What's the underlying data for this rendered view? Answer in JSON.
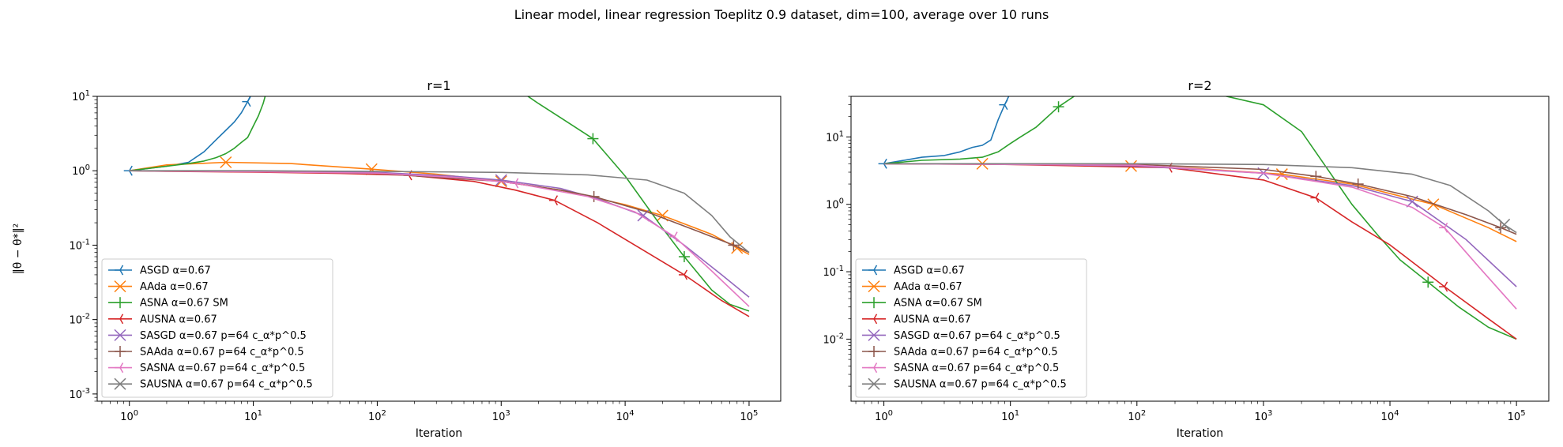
{
  "figure": {
    "suptitle": "Linear model, linear regression Toeplitz 0.9 dataset, dim=100, average over 10 runs"
  },
  "colors": {
    "ASGD": "#1f77b4",
    "AAda": "#ff7f0e",
    "ASNA": "#2ca02c",
    "AUSNA": "#d62728",
    "SASGD": "#9467bd",
    "SAAda": "#8c564b",
    "SASNA": "#e377c2",
    "SAUSNA": "#7f7f7f"
  },
  "chart_data": [
    {
      "type": "line",
      "title": "r=1",
      "xlabel": "Iteration",
      "ylabel": "‖θ − θ*‖²",
      "xscale": "log",
      "yscale": "log",
      "xlim": [
        0.55,
        180000
      ],
      "ylim": [
        0.0008,
        10
      ],
      "xticks": [
        "10^0",
        "10^1",
        "10^2",
        "10^3",
        "10^4",
        "10^5"
      ],
      "yticks": [
        "10^-3",
        "10^-2",
        "10^-1",
        "10^0",
        "10^1"
      ],
      "grid": false,
      "legend_position": "lower-left",
      "series": [
        {
          "name": "ASGD α=0.67",
          "key": "ASGD",
          "marker": "tri_left",
          "markers_at": [
            1,
            9
          ],
          "x": [
            1,
            2,
            3,
            4,
            5,
            6,
            7,
            8,
            9,
            10,
            11
          ],
          "y": [
            1.0,
            1.15,
            1.3,
            1.8,
            2.6,
            3.5,
            4.5,
            6.0,
            8.5,
            12,
            16
          ]
        },
        {
          "name": "AAda α=0.67",
          "key": "AAda",
          "marker": "x",
          "markers_at": [
            6,
            90,
            1000,
            20000,
            80000
          ],
          "x": [
            1,
            2,
            6,
            20,
            90,
            300,
            1000,
            3000,
            10000,
            20000,
            50000,
            100000
          ],
          "y": [
            1.0,
            1.2,
            1.3,
            1.25,
            1.05,
            0.9,
            0.72,
            0.55,
            0.35,
            0.25,
            0.14,
            0.075
          ]
        },
        {
          "name": "ASNA α=0.67 SM",
          "key": "ASNA",
          "marker": "plus",
          "markers_at": [
            5500,
            30000
          ],
          "x": [
            1,
            2,
            3,
            4,
            5,
            6,
            7,
            8,
            9,
            10,
            11,
            12,
            14,
            1400,
            2000,
            3000,
            5500,
            10000,
            20000,
            30000,
            50000,
            70000,
            100000
          ],
          "y": [
            1.0,
            1.15,
            1.25,
            1.35,
            1.5,
            1.7,
            2.0,
            2.4,
            2.8,
            4.0,
            5.5,
            8.0,
            20,
            12,
            8,
            5.2,
            2.7,
            0.85,
            0.17,
            0.07,
            0.025,
            0.016,
            0.013
          ]
        },
        {
          "name": "AUSNA α=0.67",
          "key": "AUSNA",
          "marker": "tri_left",
          "markers_at": [
            180,
            2700,
            30000
          ],
          "x": [
            1,
            2,
            10,
            50,
            180,
            600,
            1300,
            2700,
            6000,
            15000,
            30000,
            60000,
            100000
          ],
          "y": [
            1.0,
            0.98,
            0.96,
            0.92,
            0.87,
            0.72,
            0.55,
            0.4,
            0.2,
            0.08,
            0.04,
            0.018,
            0.011
          ]
        },
        {
          "name": "SASGD α=0.67 p=64 c_α*p^0.5",
          "key": "SASGD",
          "marker": "x",
          "markers_at": [
            1000,
            14000
          ],
          "x": [
            1,
            10,
            100,
            400,
            1000,
            3000,
            6000,
            14000,
            30000,
            60000,
            100000
          ],
          "y": [
            1.0,
            0.98,
            0.95,
            0.85,
            0.75,
            0.58,
            0.42,
            0.25,
            0.1,
            0.04,
            0.02
          ]
        },
        {
          "name": "SAAda α=0.67 p=64 c_α*p^0.5",
          "key": "SAAda",
          "marker": "plus",
          "markers_at": [
            5600,
            75000
          ],
          "x": [
            1,
            10,
            100,
            1000,
            3000,
            5600,
            15000,
            40000,
            75000,
            100000
          ],
          "y": [
            1.0,
            0.98,
            0.92,
            0.72,
            0.55,
            0.45,
            0.28,
            0.15,
            0.1,
            0.08
          ]
        },
        {
          "name": "SASNA α=0.67 p=64 c_α*p^0.5",
          "key": "SASNA",
          "marker": "tri_left",
          "markers_at": [
            1300,
            25000
          ],
          "x": [
            1,
            10,
            100,
            500,
            1300,
            5000,
            12000,
            25000,
            50000,
            100000
          ],
          "y": [
            1.0,
            0.97,
            0.93,
            0.8,
            0.68,
            0.45,
            0.28,
            0.13,
            0.045,
            0.015
          ]
        },
        {
          "name": "SAUSNA α=0.67 p=64 c_α*p^0.5",
          "key": "SAUSNA",
          "marker": "x",
          "markers_at": [],
          "x": [
            1,
            10,
            100,
            1000,
            5000,
            15000,
            30000,
            50000,
            70000,
            100000
          ],
          "y": [
            1.0,
            1.0,
            0.98,
            0.95,
            0.88,
            0.75,
            0.5,
            0.25,
            0.13,
            0.08
          ]
        }
      ]
    },
    {
      "type": "line",
      "title": "r=2",
      "xlabel": "Iteration",
      "ylabel": "",
      "xscale": "log",
      "yscale": "log",
      "xlim": [
        0.55,
        180000
      ],
      "ylim": [
        0.0012,
        40
      ],
      "xticks": [
        "10^0",
        "10^1",
        "10^2",
        "10^3",
        "10^4",
        "10^5"
      ],
      "yticks": [
        "10^-2",
        "10^-1",
        "10^0",
        "10^1"
      ],
      "grid": false,
      "legend_position": "lower-left",
      "series": [
        {
          "name": "ASGD α=0.67",
          "key": "ASGD",
          "marker": "tri_left",
          "markers_at": [
            1,
            9
          ],
          "x": [
            1,
            2,
            3,
            4,
            5,
            6,
            7,
            8,
            9,
            10,
            11
          ],
          "y": [
            4.0,
            5.0,
            5.3,
            6.0,
            7.0,
            7.5,
            9.0,
            18,
            30,
            45,
            60
          ]
        },
        {
          "name": "AAda α=0.67",
          "key": "AAda",
          "marker": "x",
          "markers_at": [
            6,
            90,
            1400,
            22000
          ],
          "x": [
            1,
            6,
            90,
            300,
            1400,
            5000,
            22000,
            60000,
            100000
          ],
          "y": [
            4.0,
            4.0,
            3.7,
            3.4,
            2.8,
            2.0,
            1.0,
            0.45,
            0.28
          ]
        },
        {
          "name": "ASNA α=0.67 SM",
          "key": "ASNA",
          "marker": "plus",
          "markers_at": [
            24,
            20000
          ],
          "x": [
            1,
            2,
            4,
            6,
            8,
            10,
            12,
            16,
            24,
            35,
            50,
            200,
            1000,
            2000,
            3000,
            5000,
            8000,
            12000,
            20000,
            35000,
            60000,
            100000
          ],
          "y": [
            4.0,
            4.5,
            4.7,
            5.0,
            6.0,
            8.0,
            10,
            14,
            28,
            45,
            60,
            60,
            30,
            12,
            4.0,
            1.0,
            0.35,
            0.15,
            0.07,
            0.03,
            0.015,
            0.01
          ]
        },
        {
          "name": "AUSNA α=0.67",
          "key": "AUSNA",
          "marker": "tri_left",
          "markers_at": [
            180,
            2600,
            27000
          ],
          "x": [
            1,
            10,
            180,
            1000,
            2600,
            5000,
            10000,
            27000,
            60000,
            100000
          ],
          "y": [
            4.0,
            3.9,
            3.5,
            2.3,
            1.25,
            0.55,
            0.25,
            0.06,
            0.02,
            0.01
          ]
        },
        {
          "name": "SASGD α=0.67 p=64 c_α*p^0.5",
          "key": "SASGD",
          "marker": "x",
          "markers_at": [
            1000,
            15000
          ],
          "x": [
            1,
            10,
            100,
            1000,
            5000,
            15000,
            40000,
            100000
          ],
          "y": [
            4.0,
            3.95,
            3.7,
            2.9,
            1.9,
            1.1,
            0.3,
            0.06
          ]
        },
        {
          "name": "SAAda α=0.67 p=64 c_α*p^0.5",
          "key": "SAAda",
          "marker": "plus",
          "markers_at": [
            2600,
            5600,
            75000
          ],
          "x": [
            1,
            100,
            1000,
            2600,
            5600,
            15000,
            40000,
            75000,
            100000
          ],
          "y": [
            4.0,
            3.9,
            3.3,
            2.6,
            2.0,
            1.3,
            0.7,
            0.45,
            0.36
          ]
        },
        {
          "name": "SASNA α=0.67 p=64 c_α*p^0.5",
          "key": "SASNA",
          "marker": "tri_left",
          "markers_at": [
            27000
          ],
          "x": [
            1,
            100,
            1000,
            5000,
            15000,
            27000,
            50000,
            100000
          ],
          "y": [
            4.0,
            3.8,
            2.9,
            1.8,
            0.9,
            0.45,
            0.12,
            0.028
          ]
        },
        {
          "name": "SAUSNA α=0.67 p=64 c_α*p^0.5",
          "key": "SAUSNA",
          "marker": "x",
          "markers_at": [
            80000
          ],
          "x": [
            1,
            100,
            1000,
            5000,
            15000,
            30000,
            60000,
            80000,
            100000
          ],
          "y": [
            4.0,
            4.0,
            3.9,
            3.5,
            2.8,
            1.9,
            0.8,
            0.5,
            0.38
          ]
        }
      ]
    }
  ]
}
